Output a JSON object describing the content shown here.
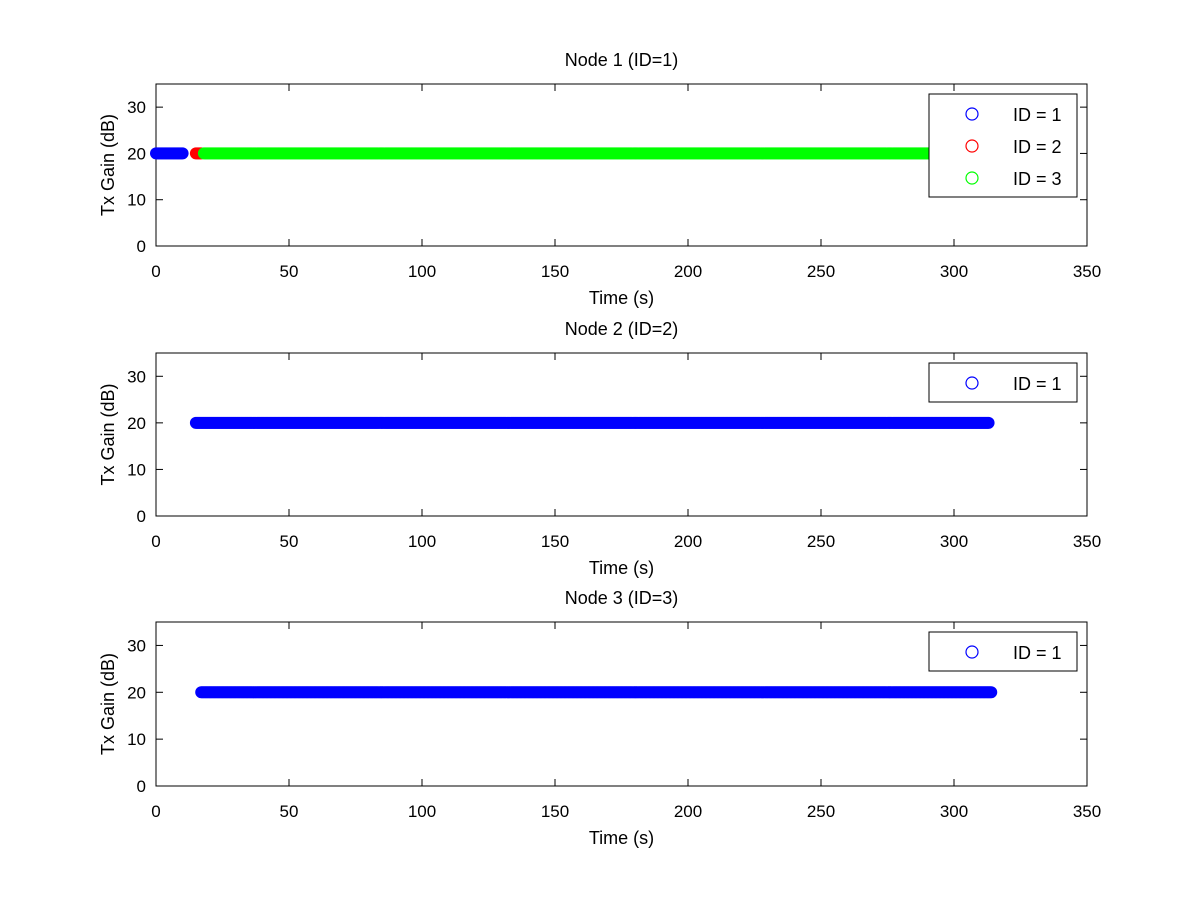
{
  "chart_data": [
    {
      "type": "scatter",
      "title": "Node 1 (ID=1)",
      "xlabel": "Time (s)",
      "ylabel": "Tx Gain (dB)",
      "xlim": [
        0,
        350
      ],
      "ylim": [
        0,
        35
      ],
      "xticks": [
        0,
        50,
        100,
        150,
        200,
        250,
        300,
        350
      ],
      "yticks": [
        0,
        10,
        20,
        30
      ],
      "grid": false,
      "legend": "top-right",
      "series": [
        {
          "name": "ID = 1",
          "color": "#0000ff",
          "x_start": 0,
          "x_end": 10,
          "y": 20
        },
        {
          "name": "ID = 2",
          "color": "#ff0000",
          "x_start": 15,
          "x_end": 17,
          "y": 20
        },
        {
          "name": "ID = 3",
          "color": "#00ff00",
          "x_start": 18,
          "x_end": 310,
          "y": 20
        }
      ]
    },
    {
      "type": "scatter",
      "title": "Node 2 (ID=2)",
      "xlabel": "Time (s)",
      "ylabel": "Tx Gain (dB)",
      "xlim": [
        0,
        350
      ],
      "ylim": [
        0,
        35
      ],
      "xticks": [
        0,
        50,
        100,
        150,
        200,
        250,
        300,
        350
      ],
      "yticks": [
        0,
        10,
        20,
        30
      ],
      "grid": false,
      "legend": "top-right",
      "series": [
        {
          "name": "ID = 1",
          "color": "#0000ff",
          "x_start": 15,
          "x_end": 313,
          "y": 20
        }
      ]
    },
    {
      "type": "scatter",
      "title": "Node 3 (ID=3)",
      "xlabel": "Time (s)",
      "ylabel": "Tx Gain (dB)",
      "xlim": [
        0,
        350
      ],
      "ylim": [
        0,
        35
      ],
      "xticks": [
        0,
        50,
        100,
        150,
        200,
        250,
        300,
        350
      ],
      "yticks": [
        0,
        10,
        20,
        30
      ],
      "grid": false,
      "legend": "top-right",
      "series": [
        {
          "name": "ID = 1",
          "color": "#0000ff",
          "x_start": 17,
          "x_end": 314,
          "y": 20
        }
      ]
    }
  ]
}
